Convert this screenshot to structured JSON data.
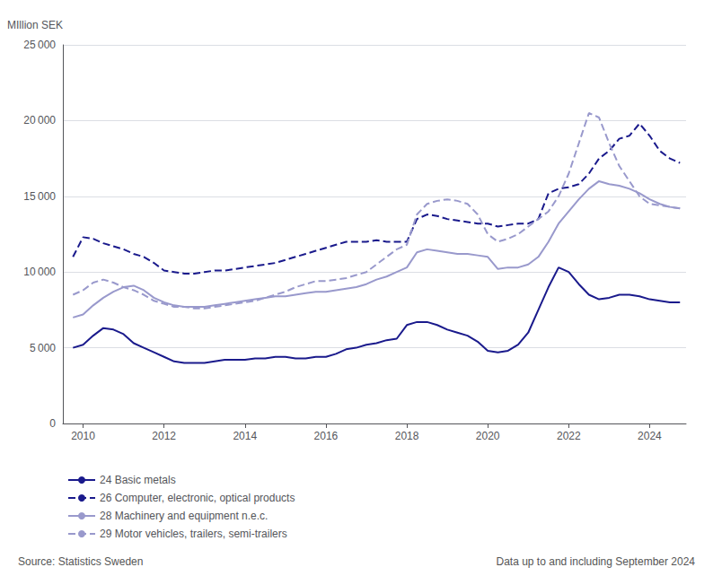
{
  "chart_data": {
    "type": "line",
    "ylabel": "MIllion SEK",
    "annotations": [
      "Source: Statistics Sweden",
      "Data up to and including September 2024"
    ],
    "x": [
      2009.75,
      2010.0,
      2010.25,
      2010.5,
      2010.75,
      2011.0,
      2011.25,
      2011.5,
      2011.75,
      2012.0,
      2012.25,
      2012.5,
      2012.75,
      2013.0,
      2013.25,
      2013.5,
      2013.75,
      2014.0,
      2014.25,
      2014.5,
      2014.75,
      2015.0,
      2015.25,
      2015.5,
      2015.75,
      2016.0,
      2016.25,
      2016.5,
      2016.75,
      2017.0,
      2017.25,
      2017.5,
      2017.75,
      2018.0,
      2018.25,
      2018.5,
      2018.75,
      2019.0,
      2019.25,
      2019.5,
      2019.75,
      2020.0,
      2020.25,
      2020.5,
      2020.75,
      2021.0,
      2021.25,
      2021.5,
      2021.75,
      2022.0,
      2022.25,
      2022.5,
      2022.75,
      2023.0,
      2023.25,
      2023.5,
      2023.75,
      2024.0,
      2024.25,
      2024.5,
      2024.75
    ],
    "series": [
      {
        "name": "24 Basic metals",
        "color": "#1a1a8c",
        "line_style": "solid",
        "values": [
          5000,
          5200,
          5800,
          6300,
          6200,
          5900,
          5300,
          5000,
          4700,
          4400,
          4100,
          4000,
          4000,
          4000,
          4100,
          4200,
          4200,
          4200,
          4300,
          4300,
          4400,
          4400,
          4300,
          4300,
          4400,
          4400,
          4600,
          4900,
          5000,
          5200,
          5300,
          5500,
          5600,
          6500,
          6700,
          6700,
          6500,
          6200,
          6000,
          5800,
          5400,
          4800,
          4700,
          4800,
          5200,
          6000,
          7500,
          9000,
          10300,
          10000,
          9200,
          8500,
          8200,
          8300,
          8500,
          8500,
          8400,
          8200,
          8100,
          8000,
          8000
        ]
      },
      {
        "name": "26 Computer, electronic, optical products",
        "color": "#1a1a8c",
        "line_style": "dashed",
        "values": [
          11000,
          12300,
          12200,
          11900,
          11700,
          11500,
          11200,
          11000,
          10600,
          10100,
          10000,
          9900,
          9900,
          10000,
          10100,
          10100,
          10200,
          10300,
          10400,
          10500,
          10600,
          10800,
          11000,
          11200,
          11400,
          11600,
          11800,
          12000,
          12000,
          12000,
          12100,
          12000,
          12000,
          12000,
          13500,
          13800,
          13700,
          13500,
          13400,
          13300,
          13200,
          13200,
          13000,
          13100,
          13200,
          13200,
          13500,
          15200,
          15500,
          15600,
          15800,
          16500,
          17500,
          18000,
          18800,
          19000,
          19800,
          19000,
          18000,
          17500,
          17200
        ]
      },
      {
        "name": "28 Machinery and equipment n.e.c.",
        "color": "#9999cc",
        "line_style": "solid",
        "values": [
          7000,
          7200,
          7800,
          8300,
          8700,
          9000,
          9100,
          8800,
          8300,
          8000,
          7800,
          7700,
          7700,
          7700,
          7800,
          7900,
          8000,
          8100,
          8200,
          8300,
          8400,
          8400,
          8500,
          8600,
          8700,
          8700,
          8800,
          8900,
          9000,
          9200,
          9500,
          9700,
          10000,
          10300,
          11300,
          11500,
          11400,
          11300,
          11200,
          11200,
          11100,
          11000,
          10200,
          10300,
          10300,
          10500,
          11000,
          12000,
          13200,
          14000,
          14800,
          15500,
          16000,
          15800,
          15700,
          15500,
          15200,
          14800,
          14500,
          14300,
          14200
        ]
      },
      {
        "name": "29 Motor vehicles, trailers, semi-trailers",
        "color": "#9999cc",
        "line_style": "dashed",
        "values": [
          8500,
          8800,
          9300,
          9500,
          9300,
          9000,
          8800,
          8500,
          8100,
          7900,
          7700,
          7700,
          7600,
          7600,
          7700,
          7800,
          7900,
          8000,
          8100,
          8300,
          8500,
          8700,
          9000,
          9200,
          9400,
          9400,
          9500,
          9600,
          9800,
          10000,
          10500,
          11000,
          11500,
          11800,
          13800,
          14500,
          14700,
          14800,
          14700,
          14500,
          13800,
          12500,
          12000,
          12200,
          12500,
          13000,
          13500,
          14000,
          15000,
          16500,
          18500,
          20500,
          20200,
          18500,
          17000,
          16000,
          15000,
          14500,
          14400,
          14300,
          14200
        ]
      }
    ],
    "xlim": [
      2009.5,
      2024.9
    ],
    "xticks": [
      2010,
      2012,
      2014,
      2016,
      2018,
      2020,
      2022,
      2024
    ],
    "ylim": [
      0,
      25000
    ],
    "yticks": [
      0,
      {
        "value": 5000,
        "label": "5 000"
      },
      {
        "value": 10000,
        "label": "10 000"
      },
      {
        "value": 15000,
        "label": "15 000"
      },
      {
        "value": 20000,
        "label": "20 000"
      },
      {
        "value": 25000,
        "label": "25 000"
      }
    ],
    "grid": true,
    "legend": "bottom"
  }
}
